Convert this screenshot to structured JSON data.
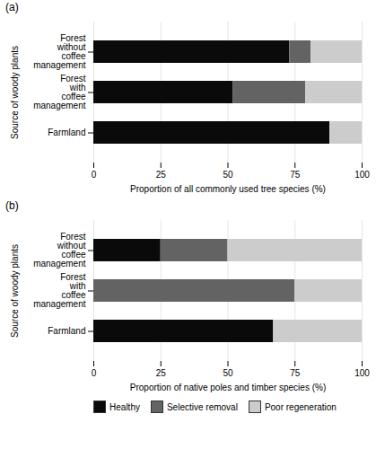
{
  "chart_data": [
    {
      "type": "bar",
      "orientation": "horizontal",
      "stacked": true,
      "title": "(a)",
      "categories": [
        "Forest\nwithout\ncoffee\nmanagement",
        "Forest\nwith\ncoffee\nmanagement",
        "Farmland"
      ],
      "series": [
        {
          "name": "Healthy",
          "color": "#0a0a0a",
          "values": [
            73,
            52,
            88
          ]
        },
        {
          "name": "Selective removal",
          "color": "#636363",
          "values": [
            8,
            27,
            0
          ]
        },
        {
          "name": "Poor regeneration",
          "color": "#cccccc",
          "values": [
            19,
            21,
            12
          ]
        }
      ],
      "xlabel": "Proportion of all commonly used tree species (%)",
      "ylabel": "Source of woody plants",
      "xlim": [
        0,
        100
      ],
      "xticks": [
        0,
        25,
        50,
        75,
        100
      ],
      "grid": true
    },
    {
      "type": "bar",
      "orientation": "horizontal",
      "stacked": true,
      "title": "(b)",
      "categories": [
        "Forest\nwithout\ncoffee\nmanagement",
        "Forest\nwith\ncoffee\nmanagement",
        "Farmland"
      ],
      "series": [
        {
          "name": "Healthy",
          "color": "#0a0a0a",
          "values": [
            25,
            0,
            67
          ]
        },
        {
          "name": "Selective removal",
          "color": "#636363",
          "values": [
            25,
            75,
            0
          ]
        },
        {
          "name": "Poor regeneration",
          "color": "#cccccc",
          "values": [
            50,
            25,
            33
          ]
        }
      ],
      "xlabel": "Proportion of native poles and timber species (%)",
      "ylabel": "Source of woody plants",
      "xlim": [
        0,
        100
      ],
      "xticks": [
        0,
        25,
        50,
        75,
        100
      ],
      "grid": true,
      "legend": "bottom"
    }
  ]
}
